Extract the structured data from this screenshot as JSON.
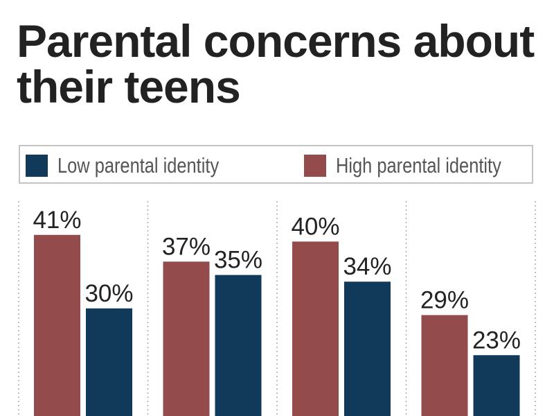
{
  "chart_data": {
    "type": "bar",
    "title": "Parental concerns about their teens",
    "categories": [
      "",
      "",
      "",
      ""
    ],
    "series": [
      {
        "name": "High parental identity",
        "color": "#934b4b",
        "values": [
          41,
          37,
          40,
          29
        ],
        "labels": [
          "41%",
          "37%",
          "40%",
          "29%"
        ]
      },
      {
        "name": "Low parental identity",
        "color": "#113959",
        "values": [
          30,
          35,
          34,
          23
        ],
        "labels": [
          "30%",
          "35%",
          "34%",
          "23%"
        ]
      }
    ],
    "ylim": [
      0,
      45
    ],
    "grid": "vertical dotted separators",
    "legend_placement": "top"
  },
  "legend": [
    {
      "label": "Low parental identity",
      "color": "#113959"
    },
    {
      "label": "High parental identity",
      "color": "#934b4b"
    }
  ]
}
